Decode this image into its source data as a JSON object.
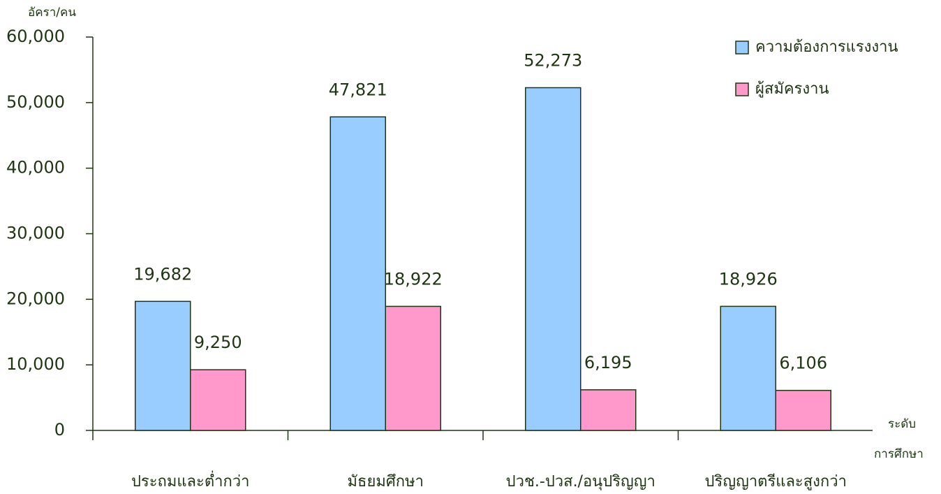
{
  "chart_data": {
    "type": "bar",
    "y_label": "อัครา/คน",
    "x_label": [
      "ระดับ",
      "การศึกษา"
    ],
    "categories": [
      "ประถมและต่ำกว่า",
      "มัธยมศึกษา",
      "ปวช.-ปวส./อนุปริญญา",
      "ปริญญาตรีและสูงกว่า"
    ],
    "series": [
      {
        "name": "ความต้องการแรงงาน",
        "color": "#99ccff",
        "values": [
          19682,
          47821,
          52273,
          18926
        ],
        "value_labels": [
          "19,682",
          "47,821",
          "52,273",
          "18,926"
        ]
      },
      {
        "name": "ผู้สมัครงาน",
        "color": "#ff99cc",
        "values": [
          9250,
          18922,
          6195,
          6106
        ],
        "value_labels": [
          "9,250",
          "18,922",
          "6,195",
          "6,106"
        ]
      }
    ],
    "ylim": [
      0,
      60000
    ],
    "yticks": [
      0,
      {
        "value": 10000,
        "label": "10,000"
      },
      {
        "value": 20000,
        "label": "20,000"
      },
      {
        "value": 30000,
        "label": "30,000"
      },
      {
        "value": 40000,
        "label": "40,000"
      },
      {
        "value": 50000,
        "label": "50,000"
      },
      {
        "value": 60000,
        "label": "60,000"
      }
    ],
    "legend": "upper right"
  }
}
